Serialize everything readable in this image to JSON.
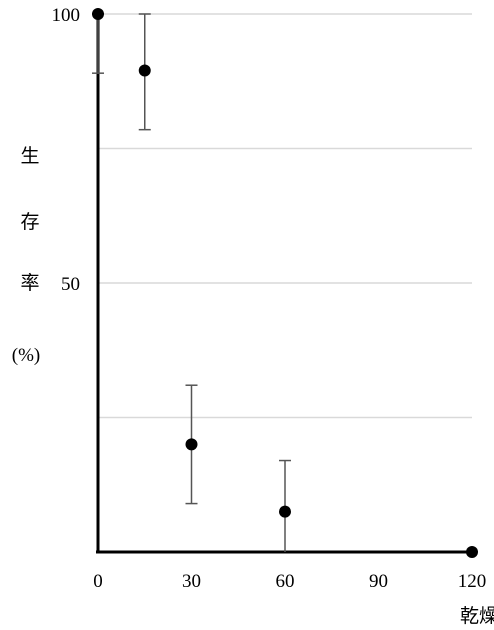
{
  "chart_data": {
    "type": "scatter",
    "xlabel": "乾燥",
    "ylabel": [
      "生",
      "存",
      "率",
      "(%)"
    ],
    "x_ticks": [
      0,
      30,
      60,
      90,
      120
    ],
    "y_ticks": [
      100,
      50
    ],
    "xlim": [
      0,
      120
    ],
    "ylim": [
      0,
      100
    ],
    "gridlines_y": [
      100,
      75,
      50,
      25
    ],
    "points": [
      {
        "x": 0,
        "y": 100,
        "err_low": 89,
        "err_high": 100
      },
      {
        "x": 15,
        "y": 89.5,
        "err_low": 78.5,
        "err_high": 100
      },
      {
        "x": 30,
        "y": 20,
        "err_low": 9,
        "err_high": 31
      },
      {
        "x": 60,
        "y": 7.5,
        "err_low": 0,
        "err_high": 17
      },
      {
        "x": 120,
        "y": 0
      }
    ],
    "colors": {
      "point": "#000000",
      "grid": "#d9d9d9",
      "axis": "#000000",
      "errorbar": "#555555"
    }
  }
}
